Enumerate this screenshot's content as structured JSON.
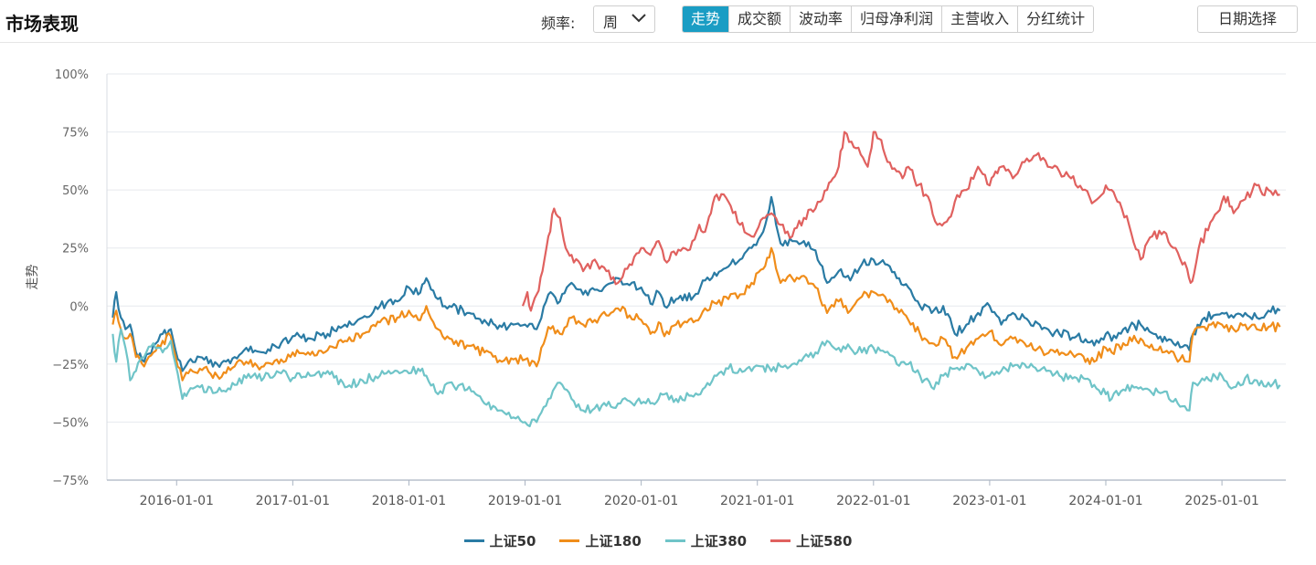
{
  "header": {
    "title": "市场表现",
    "freq_label": "频率:",
    "freq_value": "周",
    "tabs": [
      {
        "label": "走势",
        "active": true
      },
      {
        "label": "成交额",
        "active": false
      },
      {
        "label": "波动率",
        "active": false
      },
      {
        "label": "归母净利润",
        "active": false
      },
      {
        "label": "主营收入",
        "active": false
      },
      {
        "label": "分红统计",
        "active": false
      }
    ],
    "date_button": "日期选择"
  },
  "icons": {
    "freq_dropdown": "chevron-down-icon"
  },
  "chart_data": {
    "type": "line",
    "ylabel": "走势",
    "xlabel": "",
    "ylim": [
      -75,
      100
    ],
    "yticks": [
      -75,
      -50,
      -25,
      0,
      25,
      50,
      75,
      100
    ],
    "ytick_labels": [
      "−75%",
      "−50%",
      "−25%",
      "0%",
      "25%",
      "50%",
      "75%",
      "100%"
    ],
    "xticks": [
      "2016-01-01",
      "2017-01-01",
      "2018-01-01",
      "2019-01-01",
      "2020-01-01",
      "2021-01-01",
      "2022-01-01",
      "2023-01-01",
      "2024-01-01",
      "2025-01-01"
    ],
    "xlim": [
      2015.4,
      2025.55
    ],
    "grid": "horizontal",
    "legend_position": "bottom-center",
    "series": [
      {
        "name": "上证50",
        "color": "#2a7ba4",
        "x": [
          2015.45,
          2015.48,
          2015.52,
          2015.56,
          2015.6,
          2015.65,
          2015.72,
          2015.8,
          2015.88,
          2015.95,
          2016.05,
          2016.1,
          2016.2,
          2016.35,
          2016.5,
          2016.6,
          2016.75,
          2016.9,
          2017.0,
          2017.15,
          2017.3,
          2017.45,
          2017.6,
          2017.75,
          2017.9,
          2018.0,
          2018.08,
          2018.15,
          2018.25,
          2018.35,
          2018.5,
          2018.65,
          2018.8,
          2018.9,
          2019.0,
          2019.1,
          2019.2,
          2019.3,
          2019.4,
          2019.5,
          2019.6,
          2019.7,
          2019.8,
          2019.9,
          2020.0,
          2020.08,
          2020.15,
          2020.2,
          2020.3,
          2020.45,
          2020.55,
          2020.65,
          2020.75,
          2020.85,
          2020.95,
          2021.05,
          2021.12,
          2021.2,
          2021.3,
          2021.4,
          2021.5,
          2021.6,
          2021.7,
          2021.8,
          2021.9,
          2022.0,
          2022.1,
          2022.2,
          2022.3,
          2022.4,
          2022.5,
          2022.6,
          2022.7,
          2022.8,
          2022.9,
          2023.0,
          2023.1,
          2023.2,
          2023.3,
          2023.45,
          2023.6,
          2023.75,
          2023.9,
          2024.0,
          2024.05,
          2024.15,
          2024.3,
          2024.45,
          2024.6,
          2024.72,
          2024.75,
          2024.85,
          2025.0,
          2025.1,
          2025.2,
          2025.3,
          2025.4,
          2025.5
        ],
        "y": [
          -5,
          6,
          -5,
          -10,
          -8,
          -20,
          -24,
          -17,
          -12,
          -10,
          -28,
          -24,
          -22,
          -25,
          -22,
          -18,
          -20,
          -16,
          -13,
          -14,
          -12,
          -8,
          -5,
          0,
          2,
          8,
          5,
          12,
          3,
          0,
          -3,
          -6,
          -9,
          -8,
          -8,
          -10,
          5,
          2,
          10,
          5,
          7,
          9,
          12,
          9,
          8,
          1,
          6,
          0,
          3,
          4,
          11,
          13,
          17,
          20,
          25,
          32,
          47,
          27,
          28,
          28,
          24,
          10,
          15,
          11,
          18,
          20,
          18,
          12,
          8,
          0,
          -3,
          0,
          -12,
          -8,
          -3,
          0,
          -8,
          -3,
          -5,
          -10,
          -12,
          -13,
          -17,
          -12,
          -15,
          -10,
          -8,
          -14,
          -17,
          -19,
          -12,
          -5,
          -3,
          -5,
          -3,
          -5,
          -2,
          -2
        ]
      },
      {
        "name": "上证180",
        "color": "#f08d1a",
        "x": [
          2015.45,
          2015.48,
          2015.52,
          2015.56,
          2015.6,
          2015.65,
          2015.72,
          2015.8,
          2015.88,
          2015.95,
          2016.05,
          2016.1,
          2016.2,
          2016.35,
          2016.5,
          2016.6,
          2016.75,
          2016.9,
          2017.0,
          2017.15,
          2017.3,
          2017.45,
          2017.6,
          2017.75,
          2017.9,
          2018.0,
          2018.08,
          2018.15,
          2018.25,
          2018.35,
          2018.5,
          2018.65,
          2018.8,
          2018.9,
          2019.0,
          2019.1,
          2019.2,
          2019.3,
          2019.4,
          2019.5,
          2019.6,
          2019.7,
          2019.8,
          2019.9,
          2020.0,
          2020.08,
          2020.15,
          2020.2,
          2020.3,
          2020.45,
          2020.55,
          2020.65,
          2020.75,
          2020.85,
          2020.95,
          2021.05,
          2021.12,
          2021.2,
          2021.3,
          2021.4,
          2021.5,
          2021.6,
          2021.7,
          2021.8,
          2021.9,
          2022.0,
          2022.1,
          2022.2,
          2022.3,
          2022.4,
          2022.5,
          2022.6,
          2022.7,
          2022.8,
          2022.9,
          2023.0,
          2023.1,
          2023.2,
          2023.3,
          2023.45,
          2023.6,
          2023.75,
          2023.9,
          2024.0,
          2024.05,
          2024.15,
          2024.3,
          2024.45,
          2024.6,
          2024.72,
          2024.75,
          2024.85,
          2025.0,
          2025.1,
          2025.2,
          2025.3,
          2025.4,
          2025.5
        ],
        "y": [
          -8,
          -2,
          -10,
          -14,
          -12,
          -22,
          -26,
          -20,
          -15,
          -13,
          -32,
          -29,
          -27,
          -30,
          -26,
          -24,
          -26,
          -23,
          -20,
          -21,
          -19,
          -15,
          -12,
          -7,
          -5,
          -2,
          -6,
          0,
          -10,
          -14,
          -17,
          -20,
          -24,
          -23,
          -23,
          -26,
          -9,
          -12,
          -5,
          -8,
          -6,
          -4,
          -1,
          -4,
          -6,
          -12,
          -7,
          -13,
          -8,
          -7,
          -1,
          1,
          3,
          5,
          10,
          16,
          25,
          10,
          12,
          13,
          8,
          -3,
          2,
          -2,
          4,
          6,
          4,
          -1,
          -6,
          -12,
          -16,
          -14,
          -22,
          -18,
          -14,
          -11,
          -17,
          -14,
          -16,
          -19,
          -21,
          -21,
          -24,
          -18,
          -20,
          -16,
          -14,
          -19,
          -22,
          -24,
          -12,
          -9,
          -8,
          -10,
          -8,
          -10,
          -9,
          -9
        ]
      },
      {
        "name": "上证380",
        "color": "#6fc4c8",
        "x": [
          2015.45,
          2015.48,
          2015.52,
          2015.56,
          2015.6,
          2015.65,
          2015.72,
          2015.8,
          2015.88,
          2015.95,
          2016.05,
          2016.1,
          2016.2,
          2016.35,
          2016.5,
          2016.6,
          2016.75,
          2016.9,
          2017.0,
          2017.15,
          2017.3,
          2017.45,
          2017.6,
          2017.75,
          2017.9,
          2018.0,
          2018.08,
          2018.15,
          2018.25,
          2018.35,
          2018.5,
          2018.65,
          2018.8,
          2018.9,
          2019.0,
          2019.1,
          2019.2,
          2019.3,
          2019.4,
          2019.5,
          2019.6,
          2019.7,
          2019.8,
          2019.9,
          2020.0,
          2020.08,
          2020.15,
          2020.2,
          2020.3,
          2020.45,
          2020.55,
          2020.65,
          2020.75,
          2020.85,
          2020.95,
          2021.05,
          2021.12,
          2021.2,
          2021.3,
          2021.4,
          2021.5,
          2021.6,
          2021.7,
          2021.8,
          2021.9,
          2022.0,
          2022.1,
          2022.2,
          2022.3,
          2022.4,
          2022.5,
          2022.6,
          2022.7,
          2022.8,
          2022.9,
          2023.0,
          2023.1,
          2023.2,
          2023.3,
          2023.45,
          2023.6,
          2023.75,
          2023.9,
          2024.0,
          2024.05,
          2024.15,
          2024.3,
          2024.45,
          2024.6,
          2024.72,
          2024.75,
          2024.85,
          2025.0,
          2025.1,
          2025.2,
          2025.3,
          2025.4,
          2025.5
        ],
        "y": [
          -12,
          -24,
          -10,
          -18,
          -32,
          -28,
          -22,
          -16,
          -20,
          -15,
          -40,
          -37,
          -35,
          -37,
          -34,
          -31,
          -31,
          -29,
          -31,
          -30,
          -28,
          -35,
          -32,
          -30,
          -28,
          -29,
          -27,
          -30,
          -38,
          -33,
          -36,
          -42,
          -45,
          -48,
          -50,
          -50,
          -40,
          -33,
          -40,
          -45,
          -44,
          -43,
          -42,
          -41,
          -42,
          -42,
          -40,
          -38,
          -40,
          -39,
          -35,
          -30,
          -27,
          -27,
          -28,
          -26,
          -28,
          -26,
          -25,
          -22,
          -20,
          -15,
          -18,
          -18,
          -20,
          -18,
          -20,
          -25,
          -25,
          -30,
          -35,
          -30,
          -27,
          -25,
          -28,
          -30,
          -28,
          -26,
          -25,
          -27,
          -30,
          -31,
          -34,
          -38,
          -40,
          -36,
          -35,
          -37,
          -40,
          -45,
          -33,
          -32,
          -30,
          -35,
          -31,
          -32,
          -33,
          -34
        ]
      },
      {
        "name": "上证580",
        "color": "#e0615f",
        "x": [
          2018.98,
          2019.02,
          2019.05,
          2019.1,
          2019.15,
          2019.2,
          2019.25,
          2019.3,
          2019.35,
          2019.4,
          2019.5,
          2019.6,
          2019.7,
          2019.8,
          2019.9,
          2020.0,
          2020.08,
          2020.15,
          2020.2,
          2020.3,
          2020.4,
          2020.5,
          2020.55,
          2020.6,
          2020.65,
          2020.75,
          2020.85,
          2020.95,
          2021.05,
          2021.12,
          2021.2,
          2021.3,
          2021.4,
          2021.5,
          2021.6,
          2021.65,
          2021.7,
          2021.75,
          2021.85,
          2021.95,
          2022.0,
          2022.05,
          2022.1,
          2022.2,
          2022.25,
          2022.3,
          2022.35,
          2022.45,
          2022.55,
          2022.65,
          2022.7,
          2022.8,
          2022.9,
          2023.0,
          2023.05,
          2023.1,
          2023.2,
          2023.3,
          2023.4,
          2023.5,
          2023.6,
          2023.7,
          2023.8,
          2023.9,
          2024.0,
          2024.05,
          2024.1,
          2024.2,
          2024.3,
          2024.4,
          2024.5,
          2024.6,
          2024.7,
          2024.73,
          2024.76,
          2024.8,
          2024.9,
          2025.0,
          2025.05,
          2025.1,
          2025.2,
          2025.3,
          2025.35,
          2025.4,
          2025.5
        ],
        "y": [
          0,
          6,
          -2,
          5,
          15,
          30,
          42,
          38,
          25,
          22,
          15,
          20,
          15,
          10,
          18,
          25,
          22,
          28,
          20,
          22,
          24,
          35,
          32,
          40,
          48,
          45,
          35,
          30,
          38,
          40,
          35,
          30,
          38,
          42,
          50,
          55,
          60,
          75,
          68,
          60,
          75,
          72,
          65,
          58,
          55,
          60,
          55,
          48,
          35,
          38,
          45,
          50,
          60,
          52,
          58,
          60,
          55,
          62,
          65,
          60,
          58,
          55,
          50,
          45,
          52,
          50,
          45,
          35,
          20,
          30,
          32,
          25,
          16,
          10,
          14,
          25,
          36,
          45,
          47,
          40,
          46,
          52,
          48,
          50,
          48
        ]
      }
    ]
  }
}
